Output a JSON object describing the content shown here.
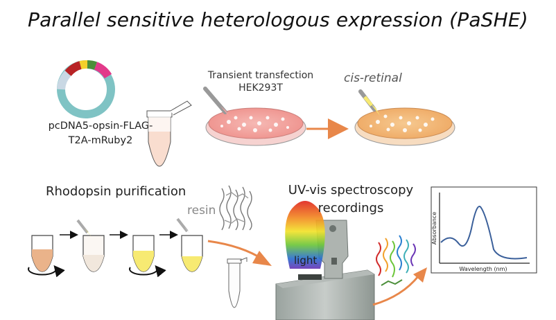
{
  "title": "Parallel sensitive heterologous expression (PaSHE)",
  "vector": {
    "label_line1": "pcDNA5-opsin-FLAG-",
    "label_line2": "T2A-mRuby2"
  },
  "transfection": {
    "line1": "Transient transfection",
    "line2": "HEK293T"
  },
  "retinal": {
    "label": "cis-retinal"
  },
  "purification": {
    "label": "Rhodopsin purification",
    "resin_label": "resin"
  },
  "spectroscopy": {
    "line1": "UV-vis spectroscopy",
    "line2": "recordings",
    "light_label": "light"
  },
  "graph": {
    "xlabel": "Wavelength (nm)",
    "ylabel": "Absorbance"
  },
  "colors": {
    "plasmid_ring": "#7fc3c4",
    "dish_pink": "#f2a3a3",
    "dish_orange": "#f2b679",
    "arrow_orange": "#e8874a",
    "yellow_tube": "#f7ea72",
    "spectrum_line": "#3a5f9a"
  }
}
